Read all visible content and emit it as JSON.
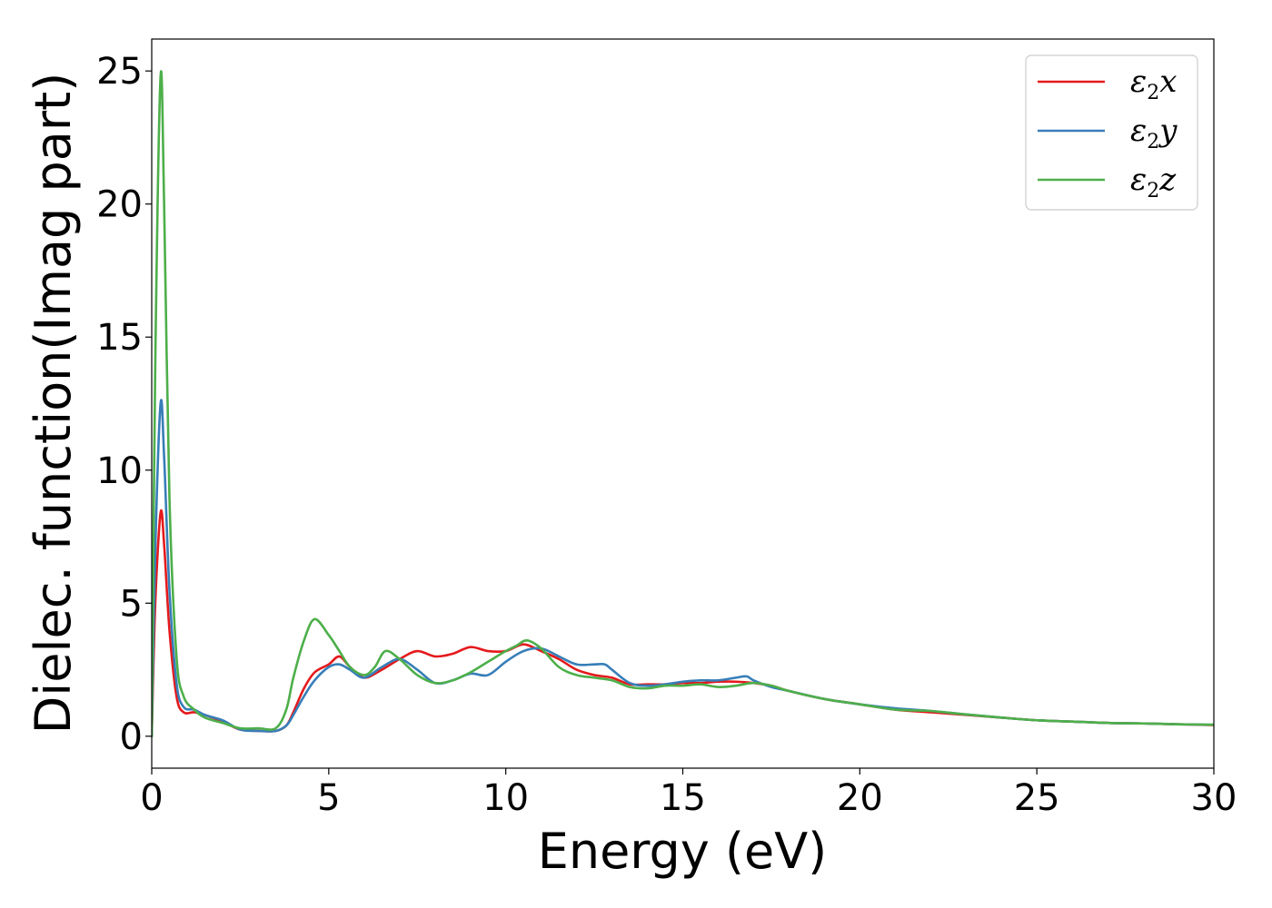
{
  "chart_data": {
    "type": "line",
    "title": "",
    "xlabel": "Energy (eV)",
    "ylabel": "Dielec. function(Imag part)",
    "xlim": [
      0,
      30
    ],
    "ylim": [
      -1.2,
      26.2
    ],
    "xticks": [
      "0",
      "5",
      "10",
      "15",
      "20",
      "25",
      "30"
    ],
    "yticks": [
      "0",
      "5",
      "10",
      "15",
      "20",
      "25"
    ],
    "grid": false,
    "legend_position": "top-right",
    "series": [
      {
        "name": "ε2x",
        "label_base": "ε",
        "label_sub": "2",
        "label_axis": "x",
        "color": "#e41a1c",
        "x": [
          0,
          0.1,
          0.25,
          0.35,
          0.5,
          0.7,
          0.9,
          1.2,
          1.5,
          2.0,
          2.5,
          3.0,
          3.5,
          3.8,
          4.0,
          4.3,
          4.6,
          5.0,
          5.3,
          5.6,
          6.0,
          6.5,
          7.0,
          7.5,
          8.0,
          8.5,
          9.0,
          9.5,
          10.0,
          10.5,
          11.0,
          11.5,
          12.0,
          12.5,
          13.0,
          13.5,
          14.0,
          14.5,
          15.0,
          15.5,
          16.0,
          16.5,
          17.0,
          17.5,
          18.0,
          19.0,
          20.0,
          21.0,
          22.0,
          23.0,
          24.0,
          25.0,
          26.0,
          27.0,
          28.0,
          29.0,
          30.0
        ],
        "y": [
          0.0,
          5.0,
          8.4,
          7.2,
          4.0,
          1.5,
          0.9,
          0.9,
          0.8,
          0.55,
          0.25,
          0.2,
          0.2,
          0.4,
          0.9,
          1.8,
          2.4,
          2.7,
          3.0,
          2.6,
          2.2,
          2.5,
          2.9,
          3.2,
          3.0,
          3.1,
          3.35,
          3.2,
          3.2,
          3.45,
          3.2,
          2.9,
          2.5,
          2.3,
          2.2,
          1.95,
          1.95,
          1.95,
          2.0,
          2.0,
          2.05,
          2.05,
          2.0,
          1.9,
          1.7,
          1.4,
          1.2,
          1.0,
          0.9,
          0.8,
          0.7,
          0.6,
          0.55,
          0.5,
          0.48,
          0.45,
          0.42
        ]
      },
      {
        "name": "ε2y",
        "label_base": "ε",
        "label_sub": "2",
        "label_axis": "y",
        "color": "#377eb8",
        "x": [
          0,
          0.1,
          0.25,
          0.35,
          0.5,
          0.7,
          0.9,
          1.2,
          1.5,
          2.0,
          2.5,
          3.0,
          3.5,
          3.8,
          4.0,
          4.3,
          4.6,
          5.0,
          5.3,
          5.6,
          6.0,
          6.5,
          7.0,
          7.5,
          8.0,
          8.5,
          9.0,
          9.5,
          10.0,
          10.5,
          11.0,
          11.5,
          12.0,
          12.5,
          12.8,
          13.0,
          13.5,
          14.0,
          14.5,
          15.0,
          15.5,
          16.0,
          16.5,
          16.8,
          17.0,
          17.5,
          18.0,
          19.0,
          20.0,
          21.0,
          22.0,
          23.0,
          24.0,
          25.0,
          26.0,
          27.0,
          28.0,
          29.0,
          30.0
        ],
        "y": [
          0.0,
          7.0,
          12.5,
          10.5,
          5.5,
          2.0,
          1.1,
          1.0,
          0.8,
          0.6,
          0.25,
          0.2,
          0.2,
          0.4,
          0.8,
          1.5,
          2.1,
          2.6,
          2.7,
          2.5,
          2.2,
          2.6,
          2.9,
          2.5,
          2.0,
          2.1,
          2.35,
          2.3,
          2.8,
          3.2,
          3.3,
          3.0,
          2.7,
          2.7,
          2.7,
          2.5,
          2.0,
          1.9,
          1.95,
          2.05,
          2.1,
          2.1,
          2.2,
          2.25,
          2.1,
          1.85,
          1.7,
          1.4,
          1.2,
          1.05,
          0.95,
          0.82,
          0.7,
          0.6,
          0.55,
          0.5,
          0.48,
          0.45,
          0.43
        ]
      },
      {
        "name": "ε2z",
        "label_base": "ε",
        "label_sub": "2",
        "label_axis": "z",
        "color": "#4daf4a",
        "x": [
          0,
          0.1,
          0.25,
          0.35,
          0.5,
          0.7,
          0.9,
          1.2,
          1.5,
          2.0,
          2.5,
          3.0,
          3.5,
          3.8,
          4.0,
          4.3,
          4.6,
          5.0,
          5.3,
          5.6,
          6.0,
          6.3,
          6.6,
          7.0,
          7.5,
          8.0,
          8.5,
          9.0,
          9.5,
          10.0,
          10.3,
          10.6,
          11.0,
          11.5,
          12.0,
          12.5,
          13.0,
          13.5,
          14.0,
          14.5,
          15.0,
          15.5,
          16.0,
          16.5,
          17.0,
          17.5,
          18.0,
          19.0,
          20.0,
          21.0,
          22.0,
          23.0,
          24.0,
          25.0,
          26.0,
          27.0,
          28.0,
          29.0,
          30.0
        ],
        "y": [
          0.0,
          14.0,
          24.8,
          20.0,
          9.0,
          3.0,
          1.5,
          1.0,
          0.7,
          0.5,
          0.3,
          0.3,
          0.3,
          1.0,
          2.2,
          3.6,
          4.4,
          3.8,
          3.2,
          2.6,
          2.3,
          2.6,
          3.2,
          2.9,
          2.3,
          2.0,
          2.1,
          2.4,
          2.8,
          3.2,
          3.4,
          3.6,
          3.3,
          2.6,
          2.3,
          2.2,
          2.1,
          1.85,
          1.8,
          1.9,
          1.9,
          1.95,
          1.85,
          1.9,
          2.0,
          1.9,
          1.7,
          1.4,
          1.2,
          1.0,
          0.95,
          0.82,
          0.7,
          0.6,
          0.55,
          0.5,
          0.48,
          0.45,
          0.43
        ]
      }
    ]
  }
}
